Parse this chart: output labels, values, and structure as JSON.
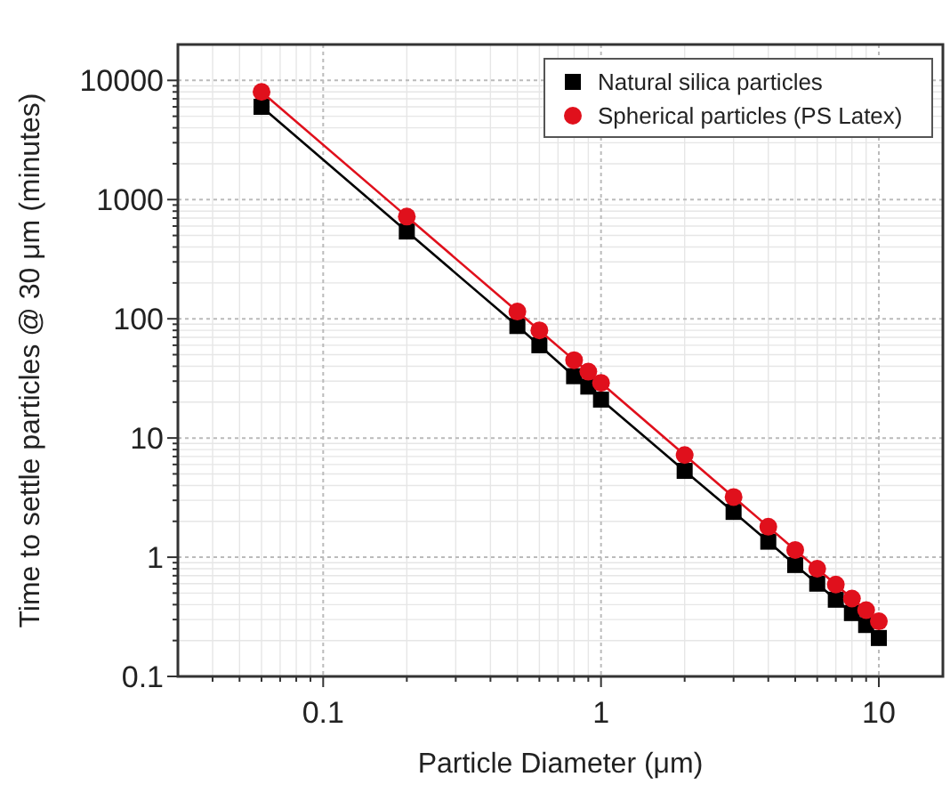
{
  "chart_data": {
    "type": "line",
    "xlabel": "Particle Diameter (μm)",
    "ylabel": "Time to settle particles @ 30 μm (minutes)",
    "x": [
      0.06,
      0.2,
      0.5,
      0.6,
      0.8,
      0.9,
      1,
      2,
      3,
      4,
      5,
      6,
      7,
      8,
      9,
      10
    ],
    "series": [
      {
        "name": "Natural silica particles",
        "color": "#000000",
        "marker": "square",
        "values": [
          6000,
          540,
          87,
          60,
          33,
          27,
          21,
          5.3,
          2.4,
          1.35,
          0.86,
          0.6,
          0.44,
          0.34,
          0.27,
          0.21
        ]
      },
      {
        "name": "Spherical particles (PS Latex)",
        "color": "#e0101c",
        "marker": "circle",
        "values": [
          8000,
          720,
          115,
          80,
          45,
          36,
          29,
          7.2,
          3.2,
          1.8,
          1.15,
          0.8,
          0.59,
          0.45,
          0.36,
          0.29
        ]
      }
    ],
    "log": "xy",
    "xlim": [
      0.03,
      17
    ],
    "xticks": [
      0.1,
      1,
      10
    ],
    "ylim": [
      0.1,
      20000
    ],
    "yticks": [
      0.1,
      1,
      10,
      100,
      1000,
      10000
    ],
    "grid": true,
    "legend": "top right",
    "line_style": "solid"
  }
}
